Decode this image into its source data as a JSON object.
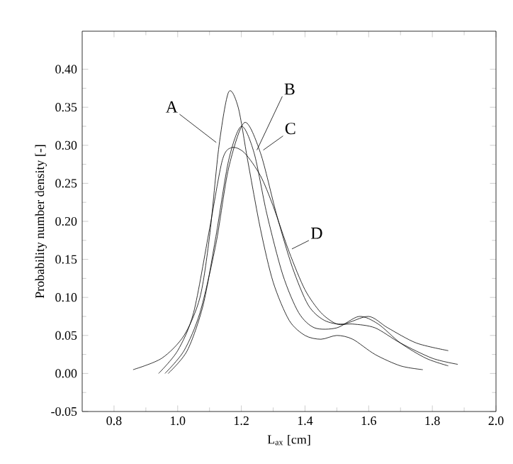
{
  "chart_data": {
    "type": "line",
    "xlabel": "L$_{ax}$ [cm]",
    "ylabel": "Probability number density [-]",
    "xlim": [
      0.7,
      2.0
    ],
    "ylim": [
      -0.05,
      0.45
    ],
    "xticks": [
      {
        "value": 0.8,
        "label": "0.8"
      },
      {
        "value": 1.0,
        "label": "1.0"
      },
      {
        "value": 1.2,
        "label": "1.2"
      },
      {
        "value": 1.4,
        "label": "1.4"
      },
      {
        "value": 1.6,
        "label": "1.6"
      },
      {
        "value": 1.8,
        "label": "1.8"
      },
      {
        "value": 2.0,
        "label": "2.0"
      }
    ],
    "yticks": [
      {
        "value": -0.05,
        "label": "-0.05"
      },
      {
        "value": 0.0,
        "label": "0.00"
      },
      {
        "value": 0.05,
        "label": "0.05"
      },
      {
        "value": 0.1,
        "label": "0.10"
      },
      {
        "value": 0.15,
        "label": "0.15"
      },
      {
        "value": 0.2,
        "label": "0.20"
      },
      {
        "value": 0.25,
        "label": "0.25"
      },
      {
        "value": 0.3,
        "label": "0.30"
      },
      {
        "value": 0.35,
        "label": "0.35"
      },
      {
        "value": 0.4,
        "label": "0.40"
      }
    ],
    "grid": false,
    "marker": "none",
    "line_style": "solid",
    "series": [
      {
        "name": "A",
        "color": "#000000",
        "x": [
          0.86,
          0.95,
          1.02,
          1.07,
          1.1,
          1.13,
          1.16,
          1.19,
          1.22,
          1.26,
          1.3,
          1.35,
          1.4,
          1.45,
          1.5,
          1.55,
          1.62,
          1.7,
          1.77
        ],
        "values": [
          0.005,
          0.02,
          0.05,
          0.1,
          0.18,
          0.3,
          0.37,
          0.35,
          0.28,
          0.19,
          0.12,
          0.07,
          0.05,
          0.045,
          0.05,
          0.045,
          0.025,
          0.01,
          0.005
        ]
      },
      {
        "name": "B",
        "color": "#000000",
        "x": [
          0.97,
          1.03,
          1.08,
          1.12,
          1.16,
          1.2,
          1.24,
          1.28,
          1.33,
          1.38,
          1.43,
          1.5,
          1.57,
          1.63,
          1.7,
          1.78,
          1.85
        ],
        "values": [
          0.0,
          0.03,
          0.09,
          0.18,
          0.28,
          0.325,
          0.29,
          0.21,
          0.13,
          0.08,
          0.06,
          0.06,
          0.075,
          0.065,
          0.04,
          0.02,
          0.01
        ]
      },
      {
        "name": "C",
        "color": "#000000",
        "x": [
          0.96,
          1.02,
          1.07,
          1.12,
          1.16,
          1.21,
          1.26,
          1.31,
          1.36,
          1.41,
          1.46,
          1.52,
          1.6,
          1.66,
          1.75,
          1.85
        ],
        "values": [
          0.0,
          0.03,
          0.08,
          0.17,
          0.27,
          0.33,
          0.29,
          0.21,
          0.14,
          0.09,
          0.07,
          0.065,
          0.075,
          0.06,
          0.04,
          0.03
        ]
      },
      {
        "name": "D",
        "color": "#000000",
        "x": [
          0.94,
          1.0,
          1.05,
          1.1,
          1.14,
          1.17,
          1.21,
          1.26,
          1.3,
          1.35,
          1.4,
          1.45,
          1.5,
          1.55,
          1.62,
          1.7,
          1.8,
          1.88
        ],
        "values": [
          0.0,
          0.03,
          0.08,
          0.19,
          0.28,
          0.297,
          0.29,
          0.26,
          0.22,
          0.16,
          0.11,
          0.08,
          0.065,
          0.065,
          0.06,
          0.04,
          0.02,
          0.012
        ]
      }
    ]
  }
}
